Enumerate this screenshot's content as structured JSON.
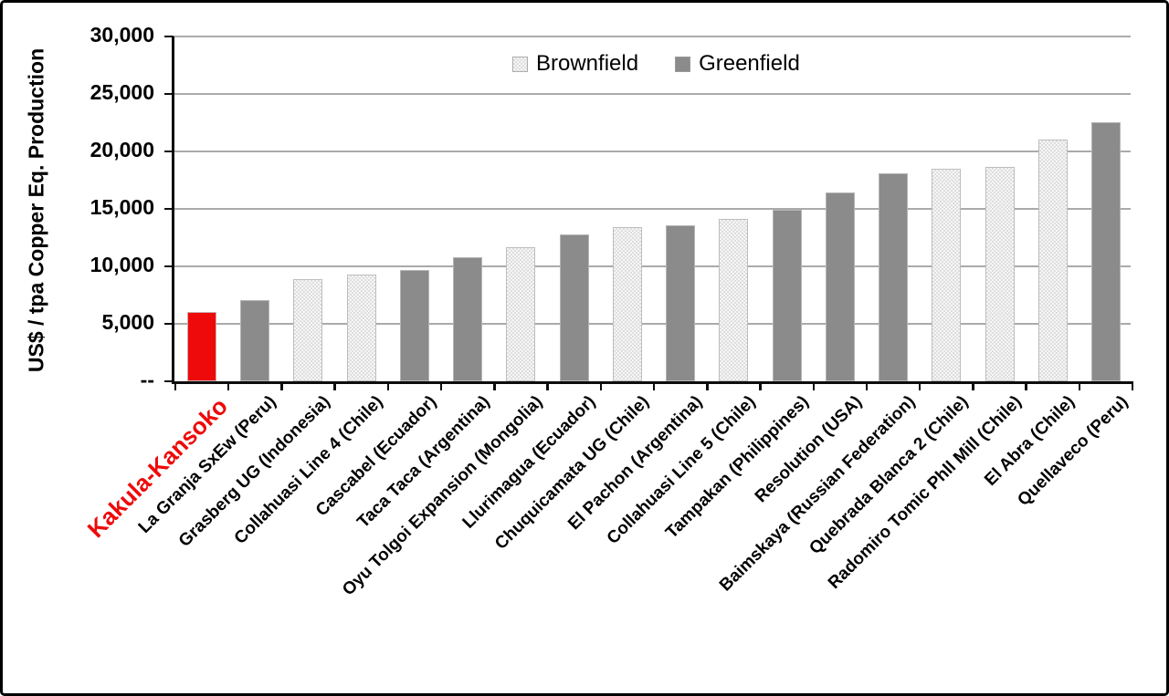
{
  "chart_data": {
    "type": "bar",
    "title": "",
    "ylabel": "US$ / tpa Copper Eq. Production",
    "xlabel": "",
    "ylim": [
      0,
      30000
    ],
    "grid": "horizontal-only",
    "legend_position": "top-center-inside",
    "legend": [
      {
        "id": "brownfield",
        "label": "Brownfield"
      },
      {
        "id": "greenfield",
        "label": "Greenfield"
      }
    ],
    "yticks": [
      {
        "label": "30,000",
        "value": 30000
      },
      {
        "label": "25,000",
        "value": 25000
      },
      {
        "label": "20,000",
        "value": 20000
      },
      {
        "label": "15,000",
        "value": 15000
      },
      {
        "label": "10,000",
        "value": 10000
      },
      {
        "label": "5,000",
        "value": 5000
      },
      {
        "label": "--",
        "value": 0
      }
    ],
    "bars": [
      {
        "label": "Kakula-Kansoko",
        "value": 6050,
        "category": "highlight"
      },
      {
        "label": "La Granja SxEw  (Peru)",
        "value": 7050,
        "category": "greenfield"
      },
      {
        "label": "Grasberg UG (Indonesia)",
        "value": 8850,
        "category": "brownfield"
      },
      {
        "label": "Collahuasi Line 4 (Chile)",
        "value": 9300,
        "category": "brownfield"
      },
      {
        "label": "Cascabel (Ecuador)",
        "value": 9700,
        "category": "greenfield"
      },
      {
        "label": "Taca Taca  (Argentina)",
        "value": 10800,
        "category": "greenfield"
      },
      {
        "label": "Oyu Tolgoi Expansion (Mongolia)",
        "value": 11650,
        "category": "brownfield"
      },
      {
        "label": "Llurimagua  (Ecuador)",
        "value": 12750,
        "category": "greenfield"
      },
      {
        "label": "Chuquicamata UG (Chile)",
        "value": 13400,
        "category": "brownfield"
      },
      {
        "label": "El Pachon  (Argentina)",
        "value": 13600,
        "category": "greenfield"
      },
      {
        "label": "Collahuasi Line 5 (Chile)",
        "value": 14150,
        "category": "brownfield"
      },
      {
        "label": "Tampakan  (Philippines)",
        "value": 14900,
        "category": "greenfield"
      },
      {
        "label": "Resolution  (USA)",
        "value": 16400,
        "category": "greenfield"
      },
      {
        "label": "Baimskaya (Russian Federation)",
        "value": 18100,
        "category": "greenfield"
      },
      {
        "label": "Quebrada Blanca 2 (Chile)",
        "value": 18500,
        "category": "brownfield"
      },
      {
        "label": "Radomiro Tomic Phll Mill (Chile)",
        "value": 18650,
        "category": "brownfield"
      },
      {
        "label": "El Abra (Chile)",
        "value": 21000,
        "category": "brownfield"
      },
      {
        "label": "Quellaveco  (Peru)",
        "value": 22500,
        "category": "greenfield"
      }
    ],
    "colors": {
      "highlight": "#ee0a0a",
      "greenfield": "#8b8b8b",
      "brownfield_fill": "#f6f6f6",
      "brownfield_dot": "#dedede",
      "gridline": "#aaaaaa",
      "axis": "#0d0d0d",
      "background": "#ffffff"
    }
  }
}
